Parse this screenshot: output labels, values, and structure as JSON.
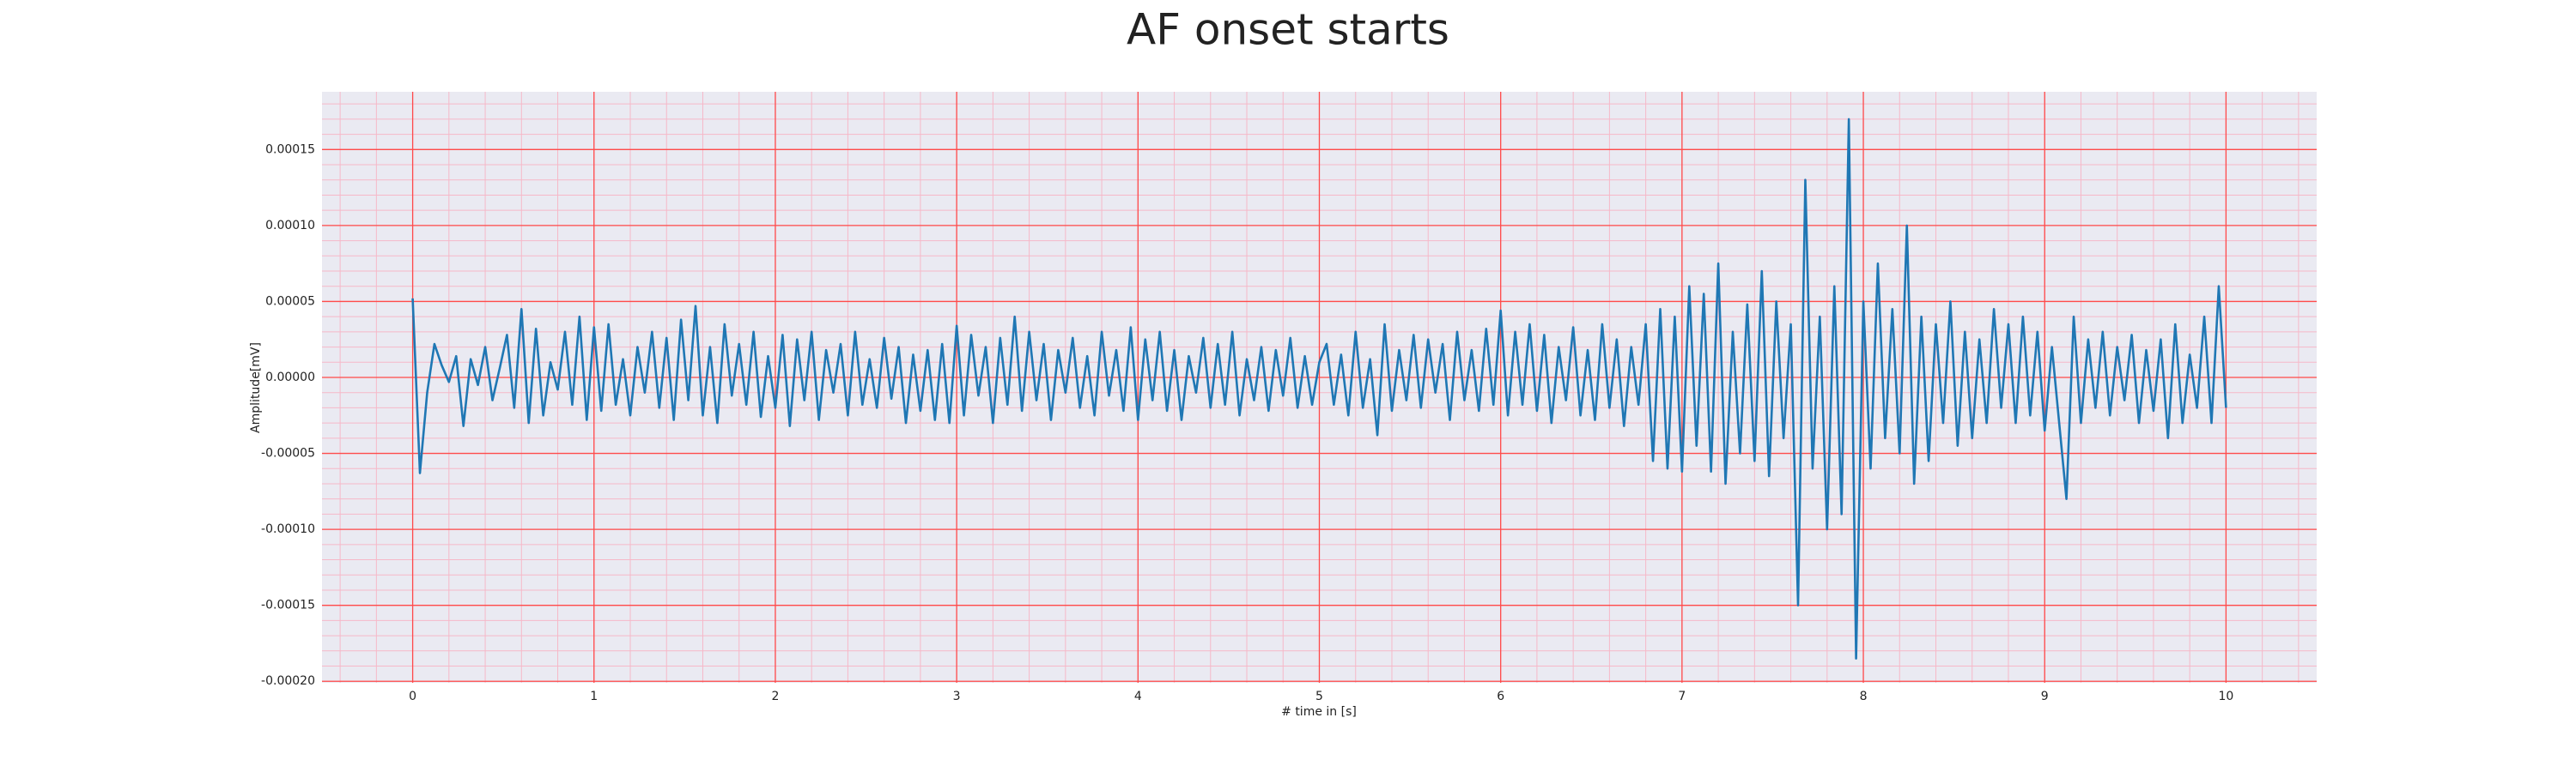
{
  "chart_data": {
    "type": "line",
    "title": "AF onset starts",
    "x_label": "# time in [s]",
    "y_label": "Amplitude[mV]",
    "x": [
      0,
      0.04,
      0.08,
      0.12,
      0.16,
      0.2,
      0.24,
      0.28,
      0.32,
      0.36,
      0.4,
      0.44,
      0.48,
      0.52,
      0.56,
      0.6,
      0.64,
      0.68,
      0.72,
      0.76,
      0.8,
      0.84,
      0.88,
      0.92,
      0.96,
      1,
      1.04,
      1.08,
      1.12,
      1.16,
      1.2,
      1.24,
      1.28,
      1.32,
      1.36,
      1.4,
      1.44,
      1.48,
      1.52,
      1.56,
      1.6,
      1.64,
      1.68,
      1.72,
      1.76,
      1.8,
      1.84,
      1.88,
      1.92,
      1.96,
      2,
      2.04,
      2.08,
      2.12,
      2.16,
      2.2,
      2.24,
      2.28,
      2.32,
      2.36,
      2.4,
      2.44,
      2.48,
      2.52,
      2.56,
      2.6,
      2.64,
      2.68,
      2.72,
      2.76,
      2.8,
      2.84,
      2.88,
      2.92,
      2.96,
      3,
      3.04,
      3.08,
      3.12,
      3.16,
      3.2,
      3.24,
      3.28,
      3.32,
      3.36,
      3.4,
      3.44,
      3.48,
      3.52,
      3.56,
      3.6,
      3.64,
      3.68,
      3.72,
      3.76,
      3.8,
      3.84,
      3.88,
      3.92,
      3.96,
      4,
      4.04,
      4.08,
      4.12,
      4.16,
      4.2,
      4.24,
      4.28,
      4.32,
      4.36,
      4.4,
      4.44,
      4.48,
      4.52,
      4.56,
      4.6,
      4.64,
      4.68,
      4.72,
      4.76,
      4.8,
      4.84,
      4.88,
      4.92,
      4.96,
      5,
      5.04,
      5.08,
      5.12,
      5.16,
      5.2,
      5.24,
      5.28,
      5.32,
      5.36,
      5.4,
      5.44,
      5.48,
      5.52,
      5.56,
      5.6,
      5.64,
      5.68,
      5.72,
      5.76,
      5.8,
      5.84,
      5.88,
      5.92,
      5.96,
      6,
      6.04,
      6.08,
      6.12,
      6.16,
      6.2,
      6.24,
      6.28,
      6.32,
      6.36,
      6.4,
      6.44,
      6.48,
      6.52,
      6.56,
      6.6,
      6.64,
      6.68,
      6.72,
      6.76,
      6.8,
      6.84,
      6.88,
      6.92,
      6.96,
      7,
      7.04,
      7.08,
      7.12,
      7.16,
      7.2,
      7.24,
      7.28,
      7.32,
      7.36,
      7.4,
      7.44,
      7.48,
      7.52,
      7.56,
      7.6,
      7.64,
      7.68,
      7.72,
      7.76,
      7.8,
      7.84,
      7.88,
      7.92,
      7.96,
      8,
      8.04,
      8.08,
      8.12,
      8.16,
      8.2,
      8.24,
      8.28,
      8.32,
      8.36,
      8.4,
      8.44,
      8.48,
      8.52,
      8.56,
      8.6,
      8.64,
      8.68,
      8.72,
      8.76,
      8.8,
      8.84,
      8.88,
      8.92,
      8.96,
      9,
      9.04,
      9.08,
      9.12,
      9.16,
      9.2,
      9.24,
      9.28,
      9.32,
      9.36,
      9.4,
      9.44,
      9.48,
      9.52,
      9.56,
      9.6,
      9.64,
      9.68,
      9.72,
      9.76,
      9.8,
      9.84,
      9.88,
      9.92,
      9.96,
      10
    ],
    "series": [
      {
        "color": "#1f77b4",
        "values": [
          5.2e-05,
          -6.3e-05,
          -1e-05,
          2.2e-05,
          8e-06,
          -3e-06,
          1.4e-05,
          -3.2e-05,
          1.2e-05,
          -5e-06,
          2e-05,
          -1.5e-05,
          6e-06,
          2.8e-05,
          -2e-05,
          4.5e-05,
          -3e-05,
          3.2e-05,
          -2.5e-05,
          1e-05,
          -8e-06,
          3e-05,
          -1.8e-05,
          4e-05,
          -2.8e-05,
          3.3e-05,
          -2.2e-05,
          3.5e-05,
          -1.8e-05,
          1.2e-05,
          -2.5e-05,
          2e-05,
          -1e-05,
          3e-05,
          -2e-05,
          2.6e-05,
          -2.8e-05,
          3.8e-05,
          -1.5e-05,
          4.7e-05,
          -2.5e-05,
          2e-05,
          -3e-05,
          3.5e-05,
          -1.2e-05,
          2.2e-05,
          -1.8e-05,
          3e-05,
          -2.6e-05,
          1.4e-05,
          -2e-05,
          2.8e-05,
          -3.2e-05,
          2.5e-05,
          -1.5e-05,
          3e-05,
          -2.8e-05,
          1.8e-05,
          -1e-05,
          2.2e-05,
          -2.5e-05,
          3e-05,
          -1.8e-05,
          1.2e-05,
          -2e-05,
          2.6e-05,
          -1.4e-05,
          2e-05,
          -3e-05,
          1.5e-05,
          -2.2e-05,
          1.8e-05,
          -2.8e-05,
          2.2e-05,
          -3e-05,
          3.4e-05,
          -2.5e-05,
          2.8e-05,
          -1.2e-05,
          2e-05,
          -3e-05,
          2.6e-05,
          -1.8e-05,
          4e-05,
          -2.2e-05,
          3e-05,
          -1.5e-05,
          2.2e-05,
          -2.8e-05,
          1.8e-05,
          -1e-05,
          2.6e-05,
          -2e-05,
          1.4e-05,
          -2.5e-05,
          3e-05,
          -1.2e-05,
          1.8e-05,
          -2.2e-05,
          3.3e-05,
          -2.8e-05,
          2.5e-05,
          -1.5e-05,
          3e-05,
          -2.2e-05,
          1.8e-05,
          -2.8e-05,
          1.4e-05,
          -1e-05,
          2.6e-05,
          -2e-05,
          2.2e-05,
          -1.8e-05,
          3e-05,
          -2.5e-05,
          1.2e-05,
          -1.5e-05,
          2e-05,
          -2.2e-05,
          1.8e-05,
          -1.2e-05,
          2.6e-05,
          -2e-05,
          1.4e-05,
          -1.8e-05,
          1e-05,
          2.2e-05,
          -1.8e-05,
          1.5e-05,
          -2.5e-05,
          3e-05,
          -2e-05,
          1.2e-05,
          -3.8e-05,
          3.5e-05,
          -2.2e-05,
          1.8e-05,
          -1.5e-05,
          2.8e-05,
          -2e-05,
          2.5e-05,
          -1e-05,
          2.2e-05,
          -2.8e-05,
          3e-05,
          -1.5e-05,
          1.8e-05,
          -2.2e-05,
          3.2e-05,
          -1.8e-05,
          4.4e-05,
          -2.5e-05,
          3e-05,
          -1.8e-05,
          3.5e-05,
          -2.2e-05,
          2.8e-05,
          -3e-05,
          2e-05,
          -1.5e-05,
          3.3e-05,
          -2.5e-05,
          1.8e-05,
          -2.8e-05,
          3.5e-05,
          -2e-05,
          2.5e-05,
          -3.2e-05,
          2e-05,
          -1.8e-05,
          3.5e-05,
          -5.5e-05,
          4.5e-05,
          -6e-05,
          4e-05,
          -6.2e-05,
          6e-05,
          -4.5e-05,
          5.5e-05,
          -6.2e-05,
          7.5e-05,
          -7e-05,
          3e-05,
          -5e-05,
          4.8e-05,
          -5.5e-05,
          7e-05,
          -6.5e-05,
          5e-05,
          -4e-05,
          3.5e-05,
          -0.00015,
          0.00013,
          -6e-05,
          4e-05,
          -0.0001,
          6e-05,
          -9e-05,
          0.00017,
          -0.000185,
          5e-05,
          -6e-05,
          7.5e-05,
          -4e-05,
          4.5e-05,
          -5e-05,
          0.0001,
          -7e-05,
          4e-05,
          -5.5e-05,
          3.5e-05,
          -3e-05,
          5e-05,
          -4.5e-05,
          3e-05,
          -4e-05,
          2.5e-05,
          -3e-05,
          4.5e-05,
          -2e-05,
          3.5e-05,
          -3e-05,
          4e-05,
          -2.5e-05,
          3e-05,
          -3.5e-05,
          2e-05,
          -3e-05,
          -8e-05,
          4e-05,
          -3e-05,
          2.5e-05,
          -2e-05,
          3e-05,
          -2.5e-05,
          2e-05,
          -1.5e-05,
          2.8e-05,
          -3e-05,
          1.8e-05,
          -2.2e-05,
          2.5e-05,
          -4e-05,
          3.5e-05,
          -3e-05,
          1.5e-05,
          -2e-05,
          4e-05,
          -3e-05,
          6e-05,
          -2e-05
        ]
      }
    ],
    "xlim": [
      -0.5,
      10.5
    ],
    "xticks": [
      0,
      1,
      2,
      3,
      4,
      5,
      6,
      7,
      8,
      9,
      10
    ],
    "ylim": [
      -0.000201,
      0.000188
    ],
    "yticks": [
      {
        "value": -0.0002,
        "label": "-0.00020"
      },
      -0.00015,
      {
        "value": -0.0001,
        "label": "-0.00010"
      },
      -5e-05,
      {
        "value": 0,
        "label": "0.00000"
      },
      5e-05,
      {
        "value": 0.0001,
        "label": "0.00010"
      },
      0.00015
    ],
    "grid": true,
    "minor_grid": true,
    "grid_color": "#ff4a4a",
    "minor_grid_color": "#f6b8c8",
    "background": "#eaeaf2"
  }
}
